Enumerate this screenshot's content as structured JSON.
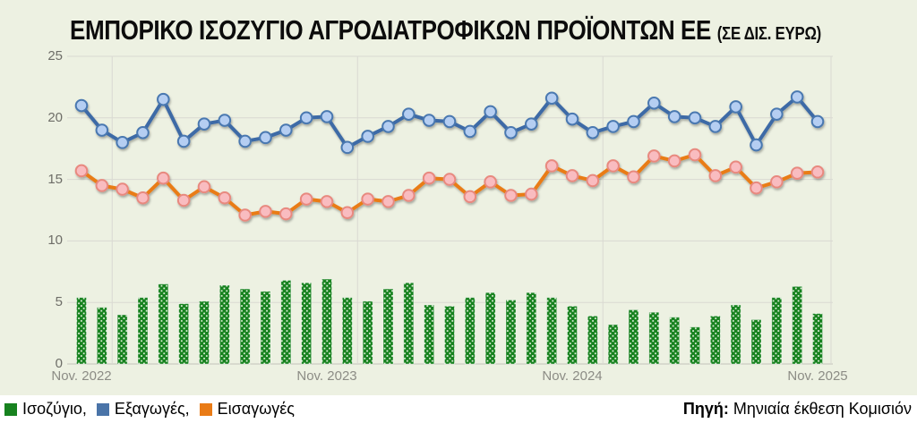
{
  "title": {
    "main": "ΕΜΠΟΡΙΚΟ ΙΣΟΖΥΓΙΟ ΑΓΡΟΔΙΑΤΡΟΦΙΚΩΝ ΠΡΟΪΟΝΤΩΝ ΕΕ ",
    "unit": "(ΣΕ ΔΙΣ. ΕΥΡΩ)"
  },
  "legend": [
    {
      "label": "Ισοζύγιο,",
      "color": "#17821f",
      "series": "balance"
    },
    {
      "label": "Εξαγωγές,",
      "color": "#4a74a8",
      "series": "exports"
    },
    {
      "label": "Εισαγωγές",
      "color": "#e97b16",
      "series": "imports"
    }
  ],
  "source": {
    "label": "Πηγή:",
    "text": " Μηνιαία έκθεση Κομισιόν"
  },
  "colors": {
    "background": "#edf1e2",
    "footer_background": "#ffffff",
    "gridline": "#d9d9d2",
    "zero_line": "#c2c2ba",
    "bar_green": "#17821f",
    "bar_dot": "#eef7e6",
    "exports_line": "#3d6aa6",
    "exports_marker_fill": "#b5cef2",
    "exports_marker_stroke": "#4a78b0",
    "imports_line": "#e97b16",
    "imports_marker_fill": "#f9bcc0",
    "imports_marker_stroke": "#e8897f"
  },
  "chart_data": {
    "type": "combo: monthly bar (balance) + two lines (exports, imports)",
    "title": "ΕΜΠΟΡΙΚΟ ΙΣΟΖΥΓΙΟ ΑΓΡΟΔΙΑΤΡΟΦΙΚΩΝ ΠΡΟΪΟΝΤΩΝ ΕΕ (ΣΕ ΔΙΣ. ΕΥΡΩ)",
    "xlabel": "",
    "ylabel": "",
    "ylim": [
      0,
      25
    ],
    "yticks": [
      0,
      5,
      10,
      15,
      20,
      25
    ],
    "grid": {
      "horizontal": true,
      "vertical_year_boundaries": [
        1.5,
        13.5,
        25.5
      ],
      "right_edge": true
    },
    "legend_position": "bottom-left",
    "x": [
      "Nov. 2022",
      "Dec. 2022",
      "Jan. 2023",
      "Feb. 2023",
      "Mar. 2023",
      "Apr. 2023",
      "May 2023",
      "Jun. 2023",
      "Jul. 2023",
      "Aug. 2023",
      "Sep. 2023",
      "Oct. 2023",
      "Nov. 2023",
      "Dec. 2023",
      "Jan. 2024",
      "Feb. 2024",
      "Mar. 2024",
      "Apr. 2024",
      "May 2024",
      "Jun. 2024",
      "Jul. 2024",
      "Aug. 2024",
      "Sep. 2024",
      "Oct. 2024",
      "Nov. 2024",
      "Dec. 2024",
      "Jan. 2025",
      "Feb. 2025",
      "Mar. 2025",
      "Apr. 2025",
      "May 2025",
      "Jun. 2025",
      "Jul. 2025",
      "Aug. 2025",
      "Sep. 2025",
      "Oct. 2025",
      "Nov. 2025"
    ],
    "x_axis_ticks": [
      {
        "label": "Nov. 2022",
        "index": 0
      },
      {
        "label": "Nov. 2023",
        "index": 12
      },
      {
        "label": "Nov. 2024",
        "index": 24
      },
      {
        "label": "Nov. 2025",
        "index": 36
      }
    ],
    "series": [
      {
        "name": "Ισοζύγιο",
        "type": "bar",
        "values": [
          5.4,
          4.6,
          4.0,
          5.4,
          6.5,
          4.9,
          5.1,
          6.4,
          6.1,
          5.9,
          6.8,
          6.6,
          6.9,
          5.4,
          5.1,
          6.1,
          6.6,
          4.8,
          4.7,
          5.4,
          5.8,
          5.2,
          5.8,
          5.4,
          4.7,
          3.9,
          3.2,
          4.4,
          4.2,
          3.8,
          3.0,
          3.9,
          4.8,
          3.6,
          5.4,
          6.3,
          4.1
        ]
      },
      {
        "name": "Εξαγωγές",
        "type": "line",
        "values": [
          21.0,
          19.0,
          18.0,
          18.8,
          21.5,
          18.1,
          19.5,
          19.8,
          18.1,
          18.4,
          19.0,
          20.0,
          20.1,
          17.6,
          18.5,
          19.3,
          20.3,
          19.8,
          19.7,
          18.9,
          20.5,
          18.8,
          19.5,
          21.6,
          19.9,
          18.8,
          19.3,
          19.7,
          21.2,
          20.1,
          20.0,
          19.3,
          20.9,
          17.8,
          20.3,
          21.7,
          19.7
        ]
      },
      {
        "name": "Εισαγωγές",
        "type": "line",
        "values": [
          15.7,
          14.5,
          14.2,
          13.5,
          15.1,
          13.3,
          14.4,
          13.5,
          12.1,
          12.4,
          12.2,
          13.4,
          13.2,
          12.3,
          13.4,
          13.2,
          13.7,
          15.1,
          15.0,
          13.6,
          14.8,
          13.7,
          13.8,
          16.1,
          15.3,
          14.9,
          16.1,
          15.2,
          16.9,
          16.5,
          17.0,
          15.3,
          16.0,
          14.3,
          14.8,
          15.5,
          15.6
        ]
      }
    ]
  }
}
